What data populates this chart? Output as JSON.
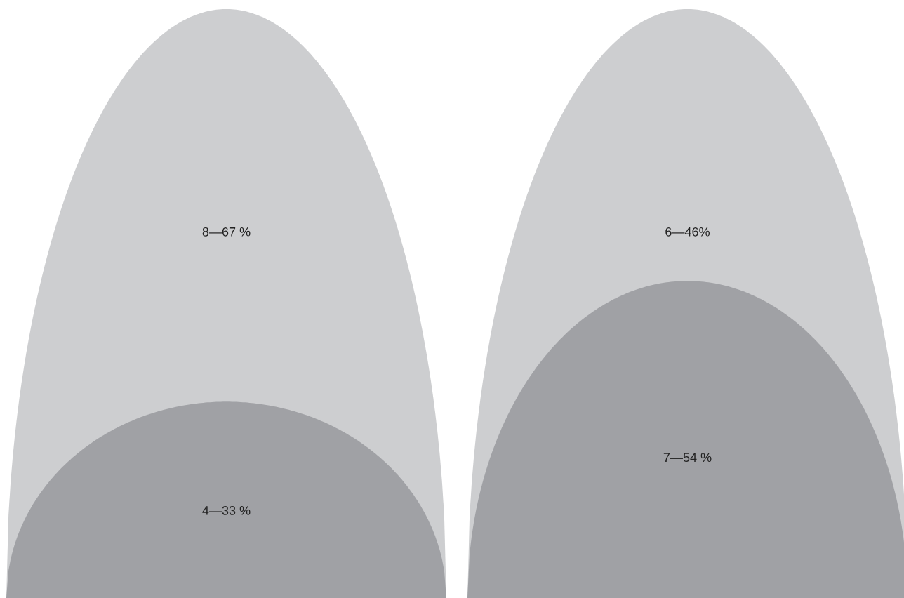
{
  "chart_data": [
    {
      "type": "other",
      "categories": [
        null,
        null
      ],
      "values": [
        8,
        4
      ],
      "colors": [
        "#cdced0",
        "#a0a1a5"
      ],
      "value_labels": [
        "8—67 %",
        "4—33 %"
      ]
    },
    {
      "type": "other",
      "categories": [
        null,
        null
      ],
      "values": [
        6,
        7
      ],
      "colors": [
        "#cdced0",
        "#a0a1a5"
      ],
      "value_labels": [
        "6—46%",
        "7—54 %"
      ]
    }
  ]
}
